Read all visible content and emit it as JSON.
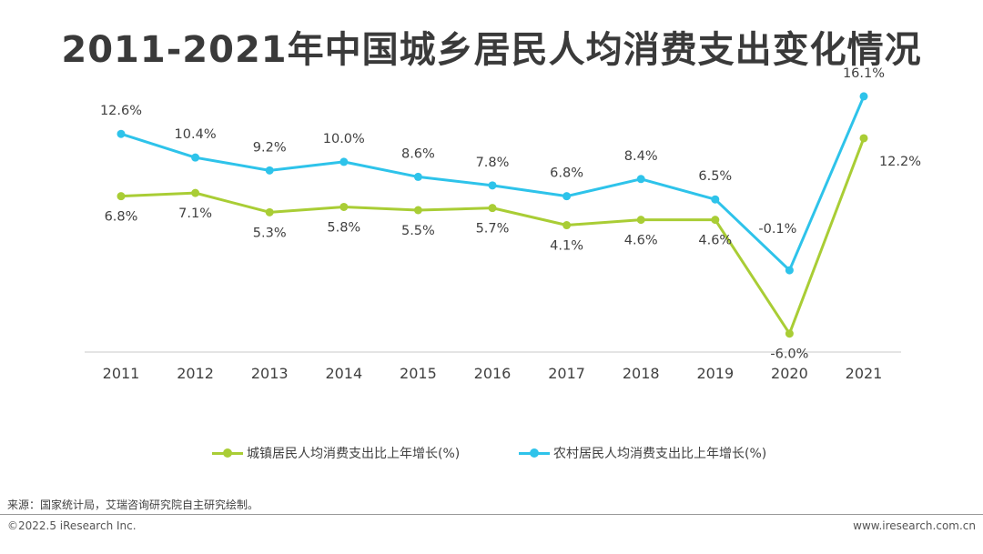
{
  "title": "2011-2021年中国城乡居民人均消费支出变化情况",
  "chart_data": {
    "type": "line",
    "categories": [
      "2011",
      "2012",
      "2013",
      "2014",
      "2015",
      "2016",
      "2017",
      "2018",
      "2019",
      "2020",
      "2021"
    ],
    "series": [
      {
        "name": "城镇居民人均消费支出比上年增长(%)",
        "color": "#a9cd35",
        "values": [
          6.8,
          7.1,
          5.3,
          5.8,
          5.5,
          5.7,
          4.1,
          4.6,
          4.6,
          -6.0,
          12.2
        ],
        "labels": [
          "6.8%",
          "7.1%",
          "5.3%",
          "5.8%",
          "5.5%",
          "5.7%",
          "4.1%",
          "4.6%",
          "4.6%",
          "-6.0%",
          "12.2%"
        ]
      },
      {
        "name": "农村居民人均消费支出比上年增长(%)",
        "color": "#2ec3ea",
        "values": [
          12.6,
          10.4,
          9.2,
          10.0,
          8.6,
          7.8,
          6.8,
          8.4,
          6.5,
          -0.1,
          16.1
        ],
        "labels": [
          "12.6%",
          "10.4%",
          "9.2%",
          "10.0%",
          "8.6%",
          "7.8%",
          "6.8%",
          "8.4%",
          "6.5%",
          "-0.1%",
          "16.1%"
        ]
      }
    ],
    "ylim": [
      -10,
      18
    ],
    "grid": false,
    "legend_position": "bottom"
  },
  "source": "来源：国家统计局，艾瑞咨询研究院自主研究绘制。",
  "copyright": "©2022.5 iResearch Inc.",
  "site": "www.iresearch.com.cn"
}
